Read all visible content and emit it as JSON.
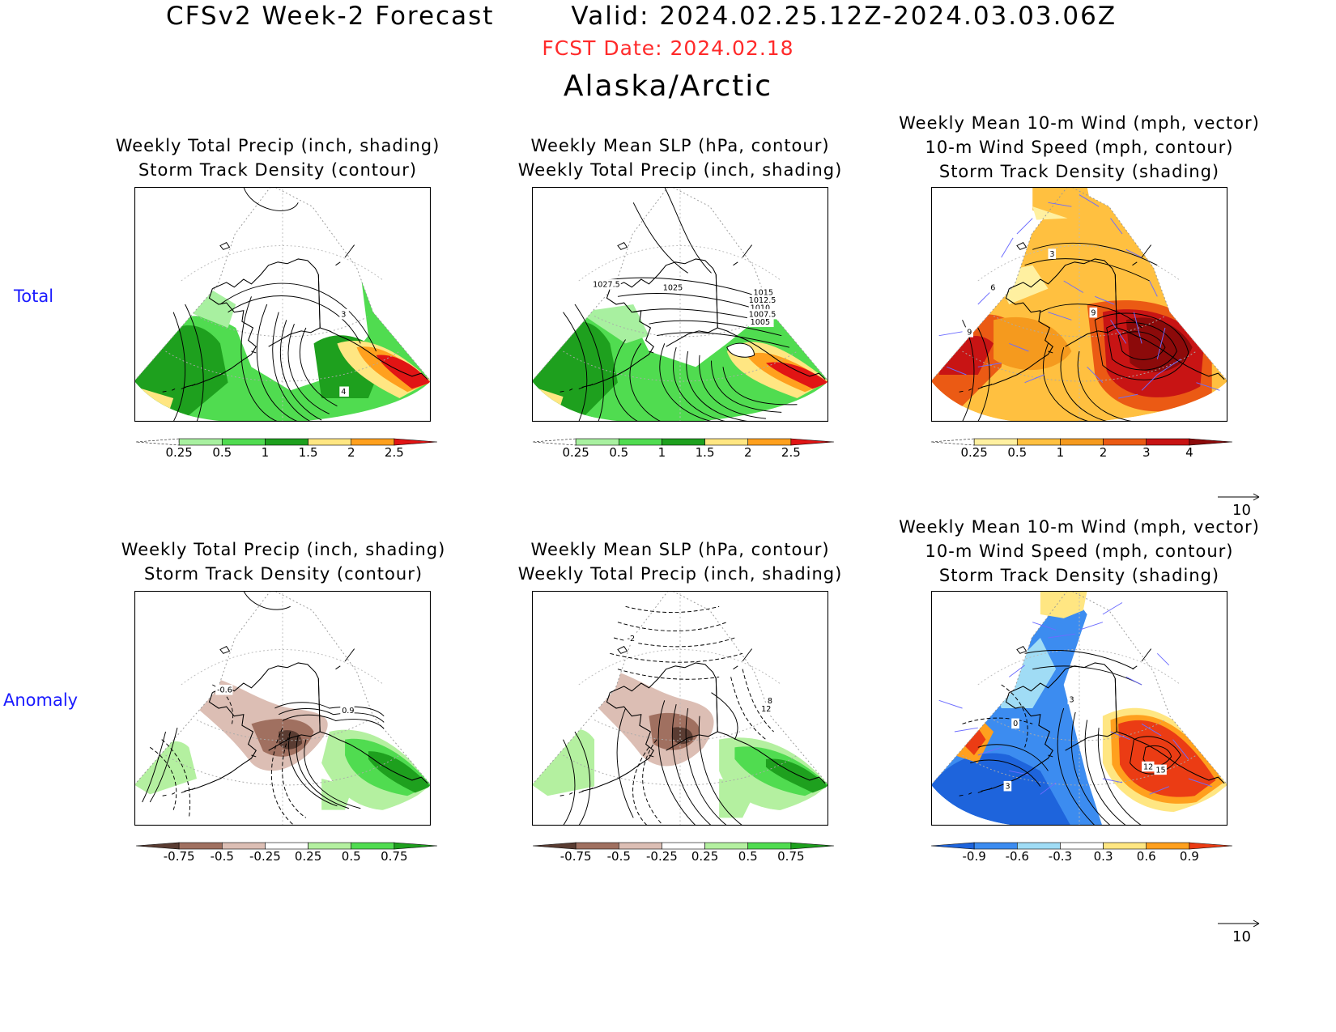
{
  "header": {
    "title": "CFSv2 Week-2 Forecast",
    "valid": "Valid: 2024.02.25.12Z-2024.03.03.06Z",
    "fcst_date": "FCST Date: 2024.02.18",
    "region": "Alaska/Arctic"
  },
  "rows": [
    {
      "label": "Total"
    },
    {
      "label": "Anomaly"
    }
  ],
  "panels": {
    "total_precip": {
      "title_lines": [
        "Weekly Total Precip (inch, shading)",
        "Storm Track Density (contour)"
      ],
      "contour_labels": [
        "3",
        "4"
      ],
      "colorbar": {
        "ticks": [
          "0.25",
          "0.5",
          "1",
          "1.5",
          "2",
          "2.5"
        ],
        "colors": [
          "#ffffff",
          "#a8f0a0",
          "#50dc50",
          "#1ea01e",
          "#ffe682",
          "#ffa01e",
          "#e11414"
        ]
      }
    },
    "total_slp": {
      "title_lines": [
        "Weekly Mean SLP (hPa, contour)",
        "Weekly Total Precip (inch, shading)"
      ],
      "contour_labels": [
        "1027.5",
        "1025",
        "1015",
        "1012.5",
        "1010",
        "1007.5",
        "1005"
      ],
      "colorbar": {
        "ticks": [
          "0.25",
          "0.5",
          "1",
          "1.5",
          "2",
          "2.5"
        ],
        "colors": [
          "#ffffff",
          "#a8f0a0",
          "#50dc50",
          "#1ea01e",
          "#ffe682",
          "#ffa01e",
          "#e11414"
        ]
      }
    },
    "total_wind": {
      "title_lines": [
        "Weekly Mean 10-m Wind (mph, vector)",
        "10-m Wind Speed (mph, contour)",
        "Storm Track Density (shading)"
      ],
      "contour_labels": [
        "3",
        "6",
        "9",
        "9"
      ],
      "colorbar": {
        "ticks": [
          "0.25",
          "0.5",
          "1",
          "2",
          "3",
          "4"
        ],
        "colors": [
          "#ffffff",
          "#fff0a0",
          "#ffc040",
          "#f59a1e",
          "#eb5a14",
          "#c81414",
          "#8c0a0a"
        ]
      },
      "vector_ref": "10"
    },
    "anom_precip": {
      "title_lines": [
        "Weekly Total Precip (inch, shading)",
        "Storm Track Density (contour)"
      ],
      "contour_labels": [
        "-0.6",
        "0.9"
      ],
      "colorbar": {
        "ticks": [
          "-0.75",
          "-0.5",
          "-0.25",
          "0.25",
          "0.5",
          "0.75"
        ],
        "colors": [
          "#5a3c32",
          "#a07060",
          "#dcbeb4",
          "#ffffff",
          "#b4f0a0",
          "#50dc50",
          "#1ea01e"
        ]
      }
    },
    "anom_slp": {
      "title_lines": [
        "Weekly Mean SLP (hPa, contour)",
        "Weekly Total Precip (inch, shading)"
      ],
      "contour_labels": [
        "-2",
        "8",
        "12"
      ],
      "colorbar": {
        "ticks": [
          "-0.75",
          "-0.5",
          "-0.25",
          "0.25",
          "0.5",
          "0.75"
        ],
        "colors": [
          "#5a3c32",
          "#a07060",
          "#dcbeb4",
          "#ffffff",
          "#b4f0a0",
          "#50dc50",
          "#1ea01e"
        ]
      }
    },
    "anom_wind": {
      "title_lines": [
        "Weekly Mean 10-m Wind (mph, vector)",
        "10-m Wind Speed (mph, contour)",
        "Storm Track Density (shading)"
      ],
      "contour_labels": [
        "3",
        "0",
        "3",
        "12",
        "15"
      ],
      "colorbar": {
        "ticks": [
          "-0.9",
          "-0.6",
          "-0.3",
          "0.3",
          "0.6",
          "0.9"
        ],
        "colors": [
          "#1e64dc",
          "#3c8cf0",
          "#a0dcf5",
          "#ffffff",
          "#ffe682",
          "#ffa01e",
          "#eb3c14"
        ]
      },
      "vector_ref": "10"
    }
  }
}
